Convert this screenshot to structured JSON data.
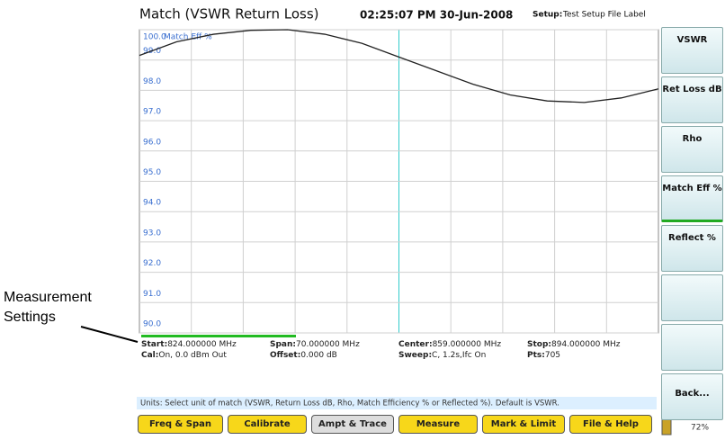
{
  "header": {
    "time": "02:25:07 PM 30-Jun-2008",
    "setup_label": "Setup:",
    "setup_value": "Test Setup File Label"
  },
  "chart_data": {
    "type": "line",
    "title": "Match (VSWR  Return Loss)",
    "ylabel": "Match Eff %",
    "x": [
      824,
      829,
      834,
      839,
      844,
      849,
      854,
      859,
      864,
      869,
      874,
      879,
      884,
      889,
      894
    ],
    "xlim": [
      824,
      894
    ],
    "series": [
      {
        "name": "Match Eff %",
        "color": "#222222",
        "values": [
          99.15,
          99.6,
          99.85,
          99.98,
          100.0,
          99.85,
          99.55,
          99.1,
          98.65,
          98.2,
          97.85,
          97.65,
          97.6,
          97.75,
          98.05
        ]
      }
    ],
    "ylim": [
      90,
      100
    ],
    "yticks": [
      {
        "value": 100,
        "label": "100.0"
      },
      {
        "value": 99,
        "label": "99.0"
      },
      {
        "value": 98,
        "label": "98.0"
      },
      {
        "value": 97,
        "label": "97.0"
      },
      {
        "value": 96,
        "label": "96.0"
      },
      {
        "value": 95,
        "label": "95.0"
      },
      {
        "value": 94,
        "label": "94.0"
      },
      {
        "value": 93,
        "label": "93.0"
      },
      {
        "value": 92,
        "label": "92.0"
      },
      {
        "value": 91,
        "label": "91.0"
      },
      {
        "value": 90,
        "label": "90.0"
      }
    ],
    "grid": true
  },
  "settings": [
    {
      "label": "Start:",
      "value": "824.000000 MHz"
    },
    {
      "label": "Span:",
      "value": "70.000000 MHz"
    },
    {
      "label": "Center:",
      "value": "859.000000 MHz"
    },
    {
      "label": "Stop:",
      "value": "894.000000 MHz"
    },
    {
      "label": "Cal:",
      "value": "On, 0.0 dBm Out"
    },
    {
      "label": "Offset:",
      "value": "0.000 dB"
    },
    {
      "label": "Sweep:",
      "value": "C,  1.2s,Ifc On"
    },
    {
      "label": "Pts:",
      "value": "705"
    }
  ],
  "softkeys": [
    "VSWR",
    "Ret Loss dB",
    "Rho",
    "Match Eff %",
    "Reflect %",
    "Back..."
  ],
  "help": "Units: Select unit of match (VSWR, Return Loss dB, Rho, Match Efficiency % or Reflected %). Default is VSWR.",
  "menu": [
    "Freq & Span",
    "Calibrate",
    "Ampt & Trace",
    "Measure",
    "Mark & Limit",
    "File & Help"
  ],
  "battery": "72%",
  "callout": "Measurement Settings"
}
